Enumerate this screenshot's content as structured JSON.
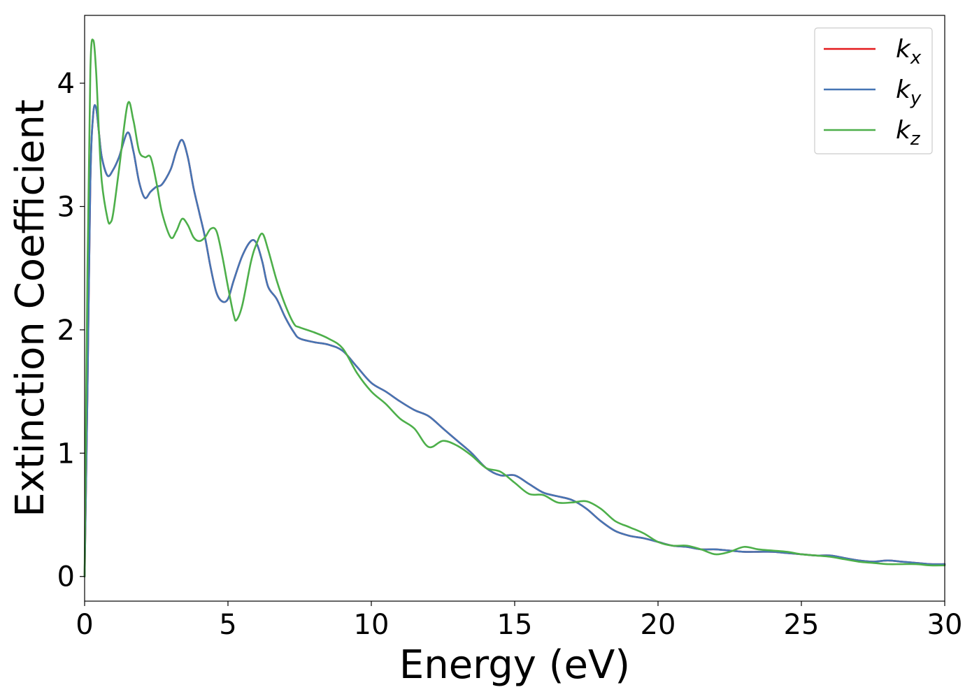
{
  "chart_data": {
    "type": "line",
    "xlabel": "Energy (eV)",
    "ylabel": "Extinction Coefficient",
    "xlim": [
      0,
      30
    ],
    "ylim": [
      -0.2,
      4.55
    ],
    "xticks": [
      0,
      5,
      10,
      15,
      20,
      25,
      30
    ],
    "yticks": [
      0,
      1,
      2,
      3,
      4
    ],
    "grid": false,
    "legend_position": "top-right",
    "series": [
      {
        "name": "k",
        "subscript": "x",
        "color": "#e41a1c",
        "x": [
          0,
          0.1,
          0.2,
          0.3,
          0.4,
          0.5,
          0.6,
          0.8,
          1.0,
          1.2,
          1.5,
          1.7,
          1.9,
          2.1,
          2.3,
          2.5,
          2.7,
          3.0,
          3.2,
          3.4,
          3.6,
          3.8,
          4.0,
          4.2,
          4.4,
          4.6,
          4.8,
          5.0,
          5.2,
          5.5,
          5.8,
          6.0,
          6.2,
          6.4,
          6.7,
          7.0,
          7.3,
          7.5,
          8.0,
          8.5,
          9.0,
          9.5,
          10.0,
          10.5,
          11.0,
          11.5,
          12.0,
          12.5,
          13.0,
          13.5,
          14.0,
          14.5,
          15.0,
          15.5,
          16.0,
          16.5,
          17.0,
          17.5,
          18.0,
          18.5,
          19.0,
          19.5,
          20.0,
          20.5,
          21.0,
          21.5,
          22.0,
          22.5,
          23.0,
          23.5,
          24.0,
          24.5,
          25.0,
          25.5,
          26.0,
          26.5,
          27.0,
          27.5,
          28.0,
          28.5,
          29.0,
          29.5,
          30.0
        ],
        "y": [
          0.0,
          1.5,
          3.2,
          3.75,
          3.8,
          3.6,
          3.4,
          3.25,
          3.3,
          3.4,
          3.6,
          3.45,
          3.2,
          3.07,
          3.12,
          3.16,
          3.18,
          3.3,
          3.45,
          3.54,
          3.4,
          3.15,
          2.95,
          2.75,
          2.5,
          2.3,
          2.23,
          2.25,
          2.4,
          2.6,
          2.72,
          2.7,
          2.55,
          2.35,
          2.25,
          2.1,
          1.98,
          1.93,
          1.9,
          1.88,
          1.83,
          1.7,
          1.57,
          1.5,
          1.42,
          1.35,
          1.3,
          1.2,
          1.1,
          1.0,
          0.88,
          0.82,
          0.82,
          0.75,
          0.68,
          0.65,
          0.62,
          0.55,
          0.45,
          0.37,
          0.33,
          0.31,
          0.28,
          0.25,
          0.24,
          0.22,
          0.22,
          0.21,
          0.2,
          0.2,
          0.2,
          0.19,
          0.18,
          0.17,
          0.17,
          0.15,
          0.13,
          0.12,
          0.13,
          0.12,
          0.11,
          0.1,
          0.1
        ]
      },
      {
        "name": "k",
        "subscript": "y",
        "color": "#4575b4",
        "x": [
          0,
          0.1,
          0.2,
          0.3,
          0.4,
          0.5,
          0.6,
          0.8,
          1.0,
          1.2,
          1.5,
          1.7,
          1.9,
          2.1,
          2.3,
          2.5,
          2.7,
          3.0,
          3.2,
          3.4,
          3.6,
          3.8,
          4.0,
          4.2,
          4.4,
          4.6,
          4.8,
          5.0,
          5.2,
          5.5,
          5.8,
          6.0,
          6.2,
          6.4,
          6.7,
          7.0,
          7.3,
          7.5,
          8.0,
          8.5,
          9.0,
          9.5,
          10.0,
          10.5,
          11.0,
          11.5,
          12.0,
          12.5,
          13.0,
          13.5,
          14.0,
          14.5,
          15.0,
          15.5,
          16.0,
          16.5,
          17.0,
          17.5,
          18.0,
          18.5,
          19.0,
          19.5,
          20.0,
          20.5,
          21.0,
          21.5,
          22.0,
          22.5,
          23.0,
          23.5,
          24.0,
          24.5,
          25.0,
          25.5,
          26.0,
          26.5,
          27.0,
          27.5,
          28.0,
          28.5,
          29.0,
          29.5,
          30.0
        ],
        "y": [
          0.0,
          1.5,
          3.2,
          3.75,
          3.8,
          3.6,
          3.4,
          3.25,
          3.3,
          3.4,
          3.6,
          3.45,
          3.2,
          3.07,
          3.12,
          3.16,
          3.18,
          3.3,
          3.45,
          3.54,
          3.4,
          3.15,
          2.95,
          2.75,
          2.5,
          2.3,
          2.23,
          2.25,
          2.4,
          2.6,
          2.72,
          2.7,
          2.55,
          2.35,
          2.25,
          2.1,
          1.98,
          1.93,
          1.9,
          1.88,
          1.83,
          1.7,
          1.57,
          1.5,
          1.42,
          1.35,
          1.3,
          1.2,
          1.1,
          1.0,
          0.88,
          0.82,
          0.82,
          0.75,
          0.68,
          0.65,
          0.62,
          0.55,
          0.45,
          0.37,
          0.33,
          0.31,
          0.28,
          0.25,
          0.24,
          0.22,
          0.22,
          0.21,
          0.2,
          0.2,
          0.2,
          0.19,
          0.18,
          0.17,
          0.17,
          0.15,
          0.13,
          0.12,
          0.13,
          0.12,
          0.11,
          0.1,
          0.1
        ]
      },
      {
        "name": "k",
        "subscript": "z",
        "color": "#4daf4a",
        "x": [
          0,
          0.1,
          0.2,
          0.3,
          0.4,
          0.5,
          0.6,
          0.8,
          0.9,
          1.0,
          1.2,
          1.5,
          1.7,
          1.9,
          2.1,
          2.3,
          2.5,
          2.7,
          3.0,
          3.2,
          3.4,
          3.6,
          3.8,
          4.0,
          4.2,
          4.4,
          4.6,
          4.8,
          5.0,
          5.2,
          5.3,
          5.5,
          5.8,
          6.0,
          6.2,
          6.4,
          6.7,
          7.0,
          7.3,
          7.5,
          8.0,
          8.5,
          9.0,
          9.5,
          10.0,
          10.5,
          11.0,
          11.5,
          12.0,
          12.5,
          13.0,
          13.5,
          14.0,
          14.5,
          15.0,
          15.5,
          16.0,
          16.5,
          17.0,
          17.5,
          18.0,
          18.5,
          19.0,
          19.5,
          20.0,
          20.5,
          21.0,
          21.5,
          22.0,
          22.5,
          23.0,
          23.5,
          24.0,
          24.5,
          25.0,
          25.5,
          26.0,
          26.5,
          27.0,
          27.5,
          28.0,
          28.5,
          29.0,
          29.5,
          30.0
        ],
        "y": [
          0.0,
          2.5,
          4.1,
          4.35,
          4.1,
          3.6,
          3.2,
          2.9,
          2.87,
          2.95,
          3.3,
          3.83,
          3.7,
          3.45,
          3.4,
          3.4,
          3.2,
          2.95,
          2.75,
          2.8,
          2.9,
          2.85,
          2.75,
          2.72,
          2.75,
          2.82,
          2.8,
          2.6,
          2.35,
          2.12,
          2.08,
          2.2,
          2.55,
          2.7,
          2.78,
          2.65,
          2.4,
          2.2,
          2.05,
          2.02,
          1.98,
          1.93,
          1.85,
          1.65,
          1.5,
          1.4,
          1.28,
          1.2,
          1.05,
          1.1,
          1.06,
          0.98,
          0.88,
          0.85,
          0.76,
          0.67,
          0.66,
          0.6,
          0.6,
          0.61,
          0.55,
          0.45,
          0.4,
          0.35,
          0.28,
          0.25,
          0.25,
          0.22,
          0.18,
          0.2,
          0.24,
          0.22,
          0.21,
          0.2,
          0.18,
          0.17,
          0.16,
          0.14,
          0.12,
          0.11,
          0.1,
          0.1,
          0.1,
          0.09,
          0.09
        ]
      }
    ]
  }
}
